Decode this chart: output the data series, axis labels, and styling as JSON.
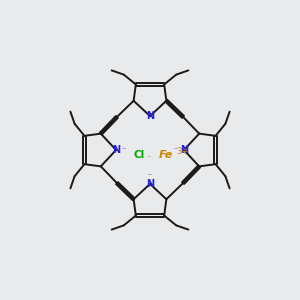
{
  "bg_color": "#e8eaec",
  "line_color": "#1a1a1a",
  "line_width": 1.4,
  "N_color": "#2222dd",
  "Fe_color": "#cc8800",
  "Cl_color": "#00aa00",
  "fe_text": "Fe",
  "fe_charge": "3+",
  "cl_text": "Cl",
  "n_minus": "⁻"
}
